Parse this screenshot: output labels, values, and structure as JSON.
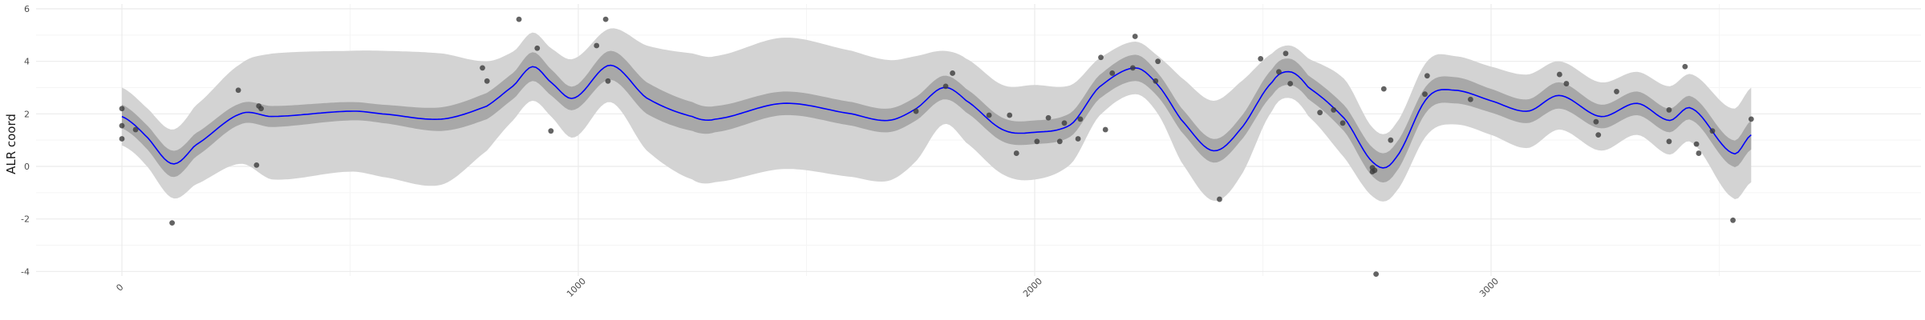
{
  "chart_data": {
    "type": "scatter",
    "title": "",
    "xlabel": "",
    "ylabel": "ALR coord",
    "xlim": [
      -100,
      3700
    ],
    "ylim": [
      -4.3,
      6.0
    ],
    "x_ticks": [
      0,
      1000,
      2000,
      3000
    ],
    "x_tick_labels": [
      "0",
      "1000",
      "2000",
      "3000"
    ],
    "y_ticks": [
      -4,
      -2,
      0,
      2,
      4,
      6
    ],
    "y_tick_labels": [
      "-4",
      "-2",
      "0",
      "2",
      "4",
      "6"
    ],
    "grid": true,
    "legend": "none",
    "colors": {
      "points": "#3c3c3c",
      "line": "#0000ff",
      "inner_band": "#a8a8a8",
      "outer_band": "#d3d3d3",
      "grid_major": "#ebebeb",
      "grid_minor": "#f5f5f5"
    },
    "points": [
      [
        0,
        2.2
      ],
      [
        0,
        1.55
      ],
      [
        0,
        1.05
      ],
      [
        30,
        1.4
      ],
      [
        110,
        -2.15
      ],
      [
        255,
        2.9
      ],
      [
        295,
        0.05
      ],
      [
        300,
        2.3
      ],
      [
        305,
        2.2
      ],
      [
        790,
        3.75
      ],
      [
        800,
        3.25
      ],
      [
        870,
        5.6
      ],
      [
        910,
        4.5
      ],
      [
        940,
        1.35
      ],
      [
        1040,
        4.6
      ],
      [
        1060,
        5.6
      ],
      [
        1065,
        3.25
      ],
      [
        1740,
        2.1
      ],
      [
        1805,
        3.05
      ],
      [
        1820,
        3.55
      ],
      [
        1900,
        1.95
      ],
      [
        1945,
        1.95
      ],
      [
        1960,
        0.5
      ],
      [
        2005,
        0.95
      ],
      [
        2030,
        1.85
      ],
      [
        2055,
        0.95
      ],
      [
        2065,
        1.65
      ],
      [
        2095,
        1.05
      ],
      [
        2100,
        1.8
      ],
      [
        2145,
        4.15
      ],
      [
        2155,
        1.4
      ],
      [
        2170,
        3.55
      ],
      [
        2215,
        3.75
      ],
      [
        2220,
        4.95
      ],
      [
        2265,
        3.25
      ],
      [
        2270,
        4.0
      ],
      [
        2405,
        -1.25
      ],
      [
        2495,
        4.1
      ],
      [
        2535,
        3.6
      ],
      [
        2550,
        4.3
      ],
      [
        2560,
        3.15
      ],
      [
        2625,
        2.05
      ],
      [
        2655,
        2.15
      ],
      [
        2675,
        1.65
      ],
      [
        2740,
        -0.05
      ],
      [
        2740,
        -0.2
      ],
      [
        2745,
        -0.15
      ],
      [
        2748,
        -4.1
      ],
      [
        2765,
        2.95
      ],
      [
        2780,
        1.0
      ],
      [
        2855,
        2.75
      ],
      [
        2860,
        3.45
      ],
      [
        2955,
        2.55
      ],
      [
        3150,
        3.5
      ],
      [
        3165,
        3.15
      ],
      [
        3230,
        1.7
      ],
      [
        3235,
        1.2
      ],
      [
        3275,
        2.85
      ],
      [
        3390,
        2.15
      ],
      [
        3390,
        0.95
      ],
      [
        3425,
        3.8
      ],
      [
        3450,
        0.85
      ],
      [
        3455,
        0.5
      ],
      [
        3485,
        1.35
      ],
      [
        3530,
        -2.05
      ],
      [
        3570,
        1.8
      ]
    ],
    "smooth": {
      "x": [
        0,
        50,
        110,
        160,
        260,
        330,
        500,
        570,
        700,
        800,
        860,
        900,
        940,
        990,
        1070,
        1150,
        1250,
        1300,
        1450,
        1600,
        1680,
        1740,
        1800,
        1850,
        1930,
        2000,
        2080,
        2140,
        2220,
        2270,
        2320,
        2390,
        2450,
        2520,
        2560,
        2600,
        2680,
        2745,
        2790,
        2860,
        2920,
        3000,
        3080,
        3150,
        3240,
        3320,
        3390,
        3440,
        3530,
        3570
      ],
      "y": [
        1.9,
        1.2,
        0.1,
        0.8,
        2.0,
        1.9,
        2.1,
        2.0,
        1.8,
        2.3,
        3.1,
        3.8,
        3.2,
        2.6,
        3.85,
        2.6,
        1.9,
        1.8,
        2.4,
        2.0,
        1.75,
        2.2,
        3.0,
        2.5,
        1.4,
        1.3,
        1.6,
        3.0,
        3.75,
        3.1,
        1.8,
        0.6,
        1.4,
        3.2,
        3.6,
        3.0,
        1.8,
        0.1,
        0.3,
        2.6,
        2.9,
        2.5,
        2.1,
        2.7,
        1.9,
        2.4,
        1.75,
        2.2,
        0.5,
        1.2
      ],
      "inner_halfwidth": [
        0.45,
        0.45,
        0.5,
        0.45,
        0.4,
        0.4,
        0.35,
        0.35,
        0.45,
        0.5,
        0.5,
        0.55,
        0.5,
        0.45,
        0.55,
        0.6,
        0.55,
        0.5,
        0.45,
        0.45,
        0.45,
        0.45,
        0.45,
        0.45,
        0.45,
        0.45,
        0.45,
        0.45,
        0.5,
        0.45,
        0.45,
        0.45,
        0.45,
        0.5,
        0.5,
        0.45,
        0.5,
        0.55,
        0.55,
        0.5,
        0.5,
        0.45,
        0.45,
        0.5,
        0.45,
        0.45,
        0.45,
        0.45,
        0.5,
        0.55
      ],
      "outer_halfwidth": [
        1.1,
        1.1,
        1.3,
        1.5,
        1.9,
        2.4,
        2.3,
        2.4,
        2.5,
        1.7,
        1.3,
        1.3,
        1.3,
        1.5,
        1.4,
        2.0,
        2.4,
        2.4,
        2.5,
        2.4,
        2.3,
        2.0,
        1.4,
        1.6,
        1.7,
        1.8,
        1.5,
        1.1,
        1.0,
        1.1,
        1.6,
        1.9,
        1.8,
        1.1,
        1.0,
        1.1,
        1.5,
        1.3,
        1.3,
        1.4,
        1.3,
        1.3,
        1.4,
        1.3,
        1.3,
        1.2,
        1.3,
        1.3,
        1.7,
        1.8
      ]
    }
  }
}
